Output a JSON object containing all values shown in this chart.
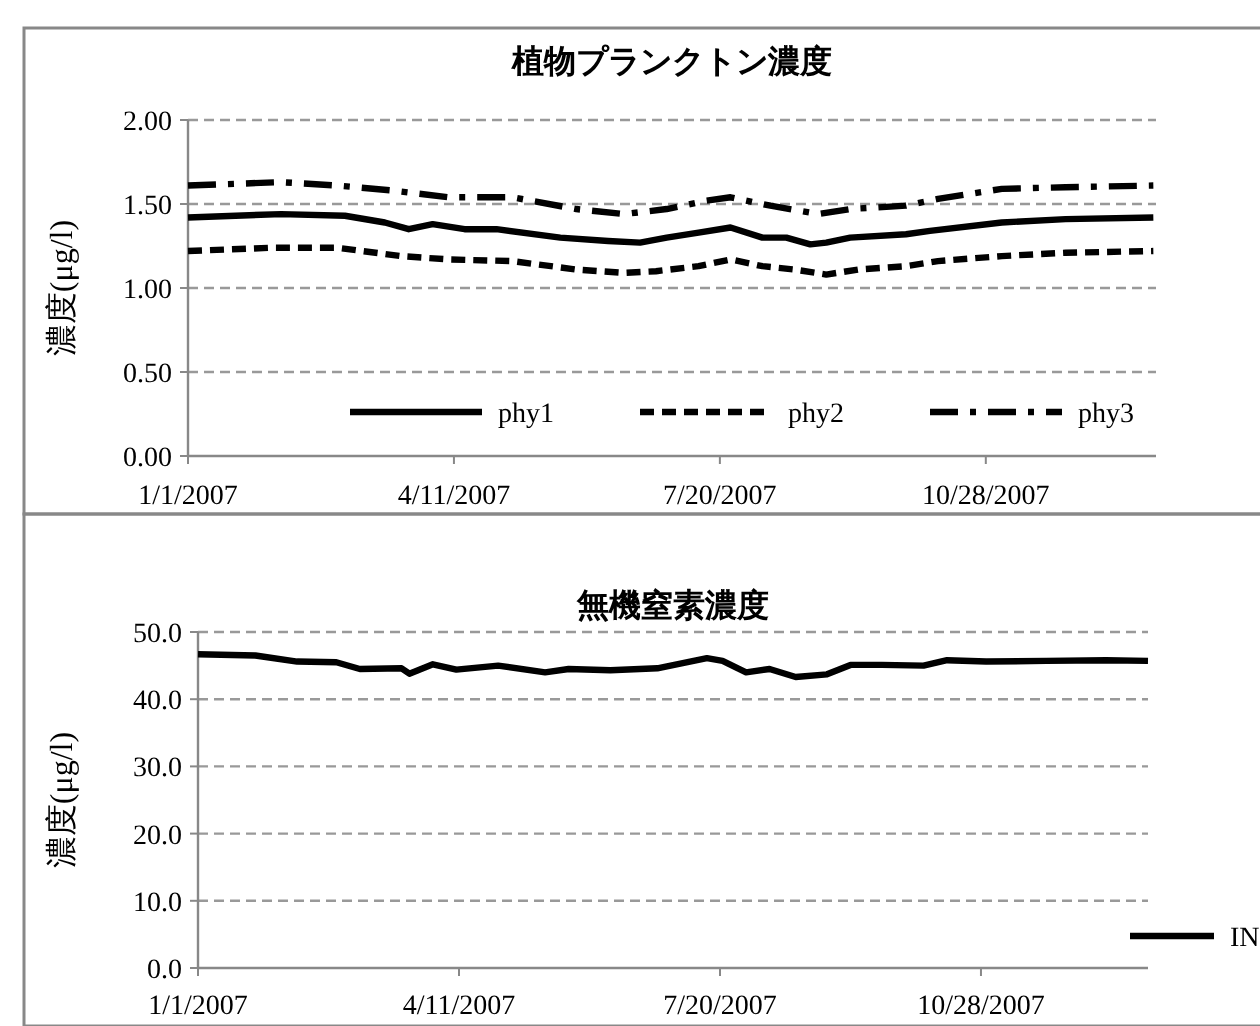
{
  "chart_data": [
    {
      "type": "line",
      "title": "植物プランクトン濃度",
      "ylabel": "濃度(μg/l)",
      "xlim": [
        "2007-01-01",
        "2007-12-31"
      ],
      "xticks": [
        {
          "value": "2007-01-01",
          "label": "1/1/2007"
        },
        {
          "value": "2007-04-11",
          "label": "4/11/2007"
        },
        {
          "value": "2007-07-20",
          "label": "7/20/2007"
        },
        {
          "value": "2007-10-28",
          "label": "10/28/2007"
        }
      ],
      "ylim": [
        0,
        2
      ],
      "yticks": [
        {
          "value": 0,
          "label": "0.00"
        },
        {
          "value": 0.5,
          "label": "0.50"
        },
        {
          "value": 1,
          "label": "1.00"
        },
        {
          "value": 1.5,
          "label": "1.50"
        },
        {
          "value": 2,
          "label": "2.00"
        }
      ],
      "grid": "y",
      "legend": "bottom right",
      "series": [
        {
          "name": "phy1",
          "color": "#000000",
          "line_style": "solid",
          "x": [
            "2007-01-01",
            "2007-02-05",
            "2007-03-01",
            "2007-03-16",
            "2007-03-25",
            "2007-04-03",
            "2007-04-15",
            "2007-04-27",
            "2007-05-21",
            "2007-06-08",
            "2007-06-20",
            "2007-06-30",
            "2007-07-12",
            "2007-07-24",
            "2007-08-05",
            "2007-08-14",
            "2007-08-23",
            "2007-08-29",
            "2007-09-07",
            "2007-09-28",
            "2007-10-07",
            "2007-11-03",
            "2007-11-27",
            "2007-12-30"
          ],
          "values": [
            1.42,
            1.44,
            1.43,
            1.39,
            1.35,
            1.38,
            1.35,
            1.35,
            1.3,
            1.28,
            1.27,
            1.3,
            1.33,
            1.36,
            1.3,
            1.3,
            1.26,
            1.27,
            1.3,
            1.32,
            1.34,
            1.39,
            1.41,
            1.42
          ]
        },
        {
          "name": "phy2",
          "color": "#000000",
          "line_style": "dashed",
          "x": [
            "2007-01-01",
            "2007-02-02",
            "2007-02-26",
            "2007-03-22",
            "2007-04-09",
            "2007-05-03",
            "2007-05-27",
            "2007-06-14",
            "2007-06-26",
            "2007-07-12",
            "2007-07-24",
            "2007-08-05",
            "2007-08-17",
            "2007-08-29",
            "2007-09-10",
            "2007-09-28",
            "2007-10-10",
            "2007-11-03",
            "2007-11-27",
            "2007-12-30"
          ],
          "values": [
            1.22,
            1.24,
            1.24,
            1.19,
            1.17,
            1.16,
            1.11,
            1.09,
            1.1,
            1.13,
            1.17,
            1.13,
            1.11,
            1.08,
            1.11,
            1.13,
            1.16,
            1.19,
            1.21,
            1.22
          ]
        },
        {
          "name": "phy3",
          "color": "#000000",
          "line_style": "dashdot",
          "x": [
            "2007-01-01",
            "2007-02-05",
            "2007-02-26",
            "2007-03-19",
            "2007-04-09",
            "2007-05-03",
            "2007-05-27",
            "2007-06-14",
            "2007-06-30",
            "2007-07-15",
            "2007-07-24",
            "2007-08-08",
            "2007-08-26",
            "2007-09-07",
            "2007-09-28",
            "2007-10-10",
            "2007-11-03",
            "2007-11-27",
            "2007-12-30"
          ],
          "values": [
            1.61,
            1.63,
            1.61,
            1.58,
            1.54,
            1.54,
            1.47,
            1.44,
            1.47,
            1.52,
            1.54,
            1.49,
            1.44,
            1.47,
            1.49,
            1.53,
            1.59,
            1.6,
            1.61
          ]
        }
      ]
    },
    {
      "type": "line",
      "title": "無機窒素濃度",
      "ylabel": "濃度(μg/l)",
      "xlim": [
        "2007-01-01",
        "2007-12-31"
      ],
      "xticks": [
        {
          "value": "2007-01-01",
          "label": "1/1/2007"
        },
        {
          "value": "2007-04-11",
          "label": "4/11/2007"
        },
        {
          "value": "2007-07-20",
          "label": "7/20/2007"
        },
        {
          "value": "2007-10-28",
          "label": "10/28/2007"
        }
      ],
      "ylim": [
        0,
        50
      ],
      "yticks": [
        {
          "value": 0,
          "label": "0.0"
        },
        {
          "value": 10,
          "label": "10.0"
        },
        {
          "value": 20,
          "label": "20.0"
        },
        {
          "value": 30,
          "label": "30.0"
        },
        {
          "value": 40,
          "label": "40.0"
        },
        {
          "value": 50,
          "label": "50.0"
        }
      ],
      "grid": "y",
      "legend": "bottom right",
      "series": [
        {
          "name": "IN",
          "color": "#000000",
          "line_style": "solid",
          "x": [
            "2007-01-01",
            "2007-01-23",
            "2007-02-08",
            "2007-02-23",
            "2007-03-04",
            "2007-03-20",
            "2007-03-23",
            "2007-04-01",
            "2007-04-10",
            "2007-04-26",
            "2007-05-14",
            "2007-05-23",
            "2007-06-08",
            "2007-06-26",
            "2007-07-15",
            "2007-07-21",
            "2007-07-30",
            "2007-08-08",
            "2007-08-18",
            "2007-08-30",
            "2007-09-08",
            "2007-09-20",
            "2007-10-06",
            "2007-10-15",
            "2007-10-30",
            "2007-11-22",
            "2007-12-15",
            "2007-12-31"
          ],
          "values": [
            46.7,
            46.5,
            45.6,
            45.5,
            44.5,
            44.6,
            43.8,
            45.2,
            44.4,
            45.0,
            44.0,
            44.5,
            44.3,
            44.6,
            46.1,
            45.7,
            44.0,
            44.5,
            43.3,
            43.7,
            45.1,
            45.1,
            45.0,
            45.8,
            45.6,
            45.7,
            45.8,
            45.7
          ]
        }
      ]
    }
  ]
}
